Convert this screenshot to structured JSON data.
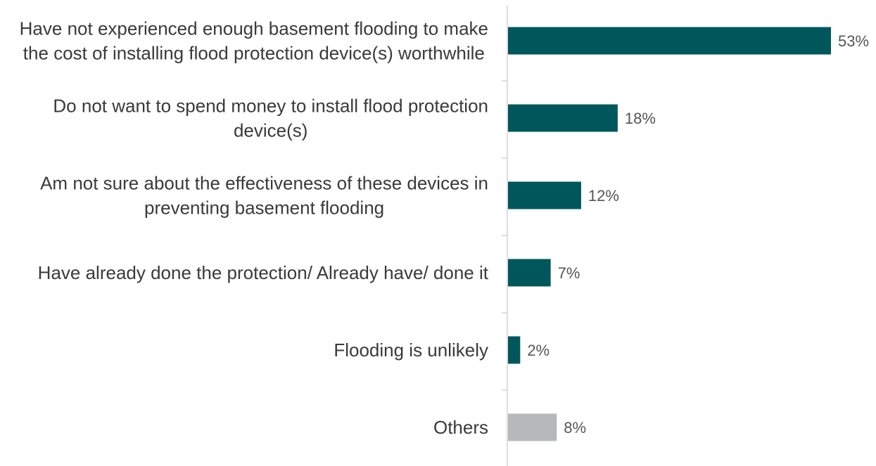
{
  "chart_data": {
    "type": "bar",
    "orientation": "horizontal",
    "title": "",
    "xlabel": "",
    "ylabel": "",
    "xlim": [
      0,
      53
    ],
    "grid": false,
    "legend": "none",
    "categories": [
      [
        "Have not experienced enough basement flooding to make",
        "the cost of installing flood protection device(s) worthwhile"
      ],
      [
        "Do not want to spend money to install flood protection",
        "device(s)"
      ],
      [
        "Am not sure about the effectiveness of these devices in",
        "preventing basement flooding"
      ],
      [
        "Have already done the protection/ Already have/ done it"
      ],
      [
        "Flooding is unlikely"
      ],
      [
        "Others"
      ]
    ],
    "values": [
      53,
      18,
      12,
      7,
      2,
      8
    ],
    "value_labels": [
      "53%",
      "18%",
      "12%",
      "7%",
      "2%",
      "8%"
    ],
    "colors": [
      "#00575b",
      "#00575b",
      "#00575b",
      "#00575b",
      "#00575b",
      "#b7b8ba"
    ]
  }
}
